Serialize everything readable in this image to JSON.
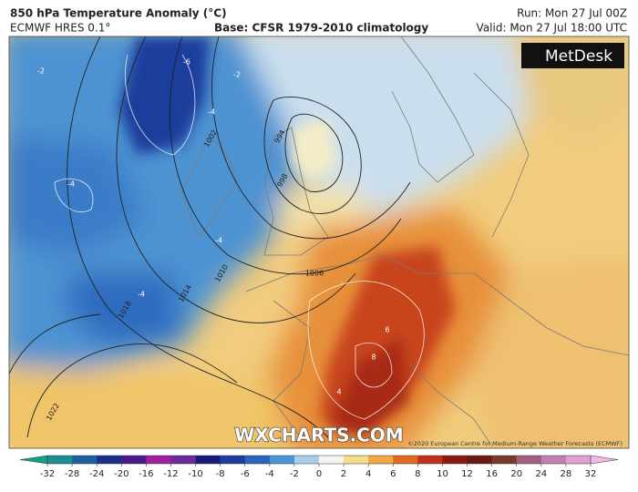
{
  "header": {
    "title": "850 hPa Temperature Anomaly (°C)",
    "model": "ECMWF HRES 0.1°",
    "base": "Base: CFSR 1979-2010 climatology",
    "run": "Run: Mon 27 Jul 00Z",
    "valid": "Valid: Mon 27 Jul 18:00 UTC"
  },
  "logo": "MetDesk",
  "watermark": "WXCHARTS.COM",
  "copyright": "©2020 European Centre for Medium-Range Weather Forecasts (ECMWF)",
  "map_labels": [
    "-2",
    "-6",
    "-4",
    "-4",
    "-4",
    "-4",
    "-2",
    "1002",
    "994",
    "998",
    "1010",
    "1014",
    "1018",
    "1022",
    "1006",
    "6",
    "8",
    "4"
  ],
  "colorbar": {
    "ticks": [
      -32,
      -28,
      -24,
      -20,
      -16,
      -12,
      -10,
      -8,
      -6,
      -4,
      -2,
      0,
      2,
      4,
      6,
      8,
      10,
      12,
      16,
      20,
      24,
      28,
      32
    ],
    "colors": [
      "#17a07f",
      "#1d8f8f",
      "#1f5fa0",
      "#1b2f8a",
      "#4a1a8a",
      "#a020a0",
      "#6a2a9a",
      "#1a1a7a",
      "#1f3aa0",
      "#2a64c0",
      "#4a94d8",
      "#a8cde8",
      "#f4f4f0",
      "#f3dc8a",
      "#f0a840",
      "#e06a20",
      "#c0301a",
      "#8a1a10",
      "#6a1a12",
      "#7a3a2a",
      "#a06080",
      "#c080b0",
      "#e0a0d0",
      "#f4b8e4"
    ]
  }
}
